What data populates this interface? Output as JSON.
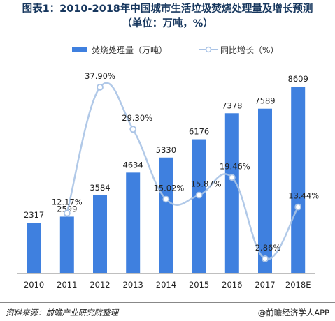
{
  "chart_data": {
    "type": "bar+line",
    "title": "图表1：2010-2018年中国城市生活垃圾焚烧处理量及增长预测",
    "subtitle": "（单位：万吨，%）",
    "categories": [
      "2010",
      "2011",
      "2012",
      "2013",
      "2014",
      "2015",
      "2016",
      "2017",
      "2018E"
    ],
    "series": [
      {
        "name": "焚烧处理量（万吨）",
        "type": "bar",
        "values": [
          2317,
          2599,
          3584,
          4634,
          5330,
          6176,
          7378,
          7589,
          8609
        ],
        "labels": [
          "2317",
          "2599",
          "3584",
          "4634",
          "5330",
          "6176",
          "7378",
          "7589",
          "8609"
        ]
      },
      {
        "name": "同比增长（%）",
        "type": "line",
        "smooth": true,
        "values": [
          null,
          12.17,
          37.9,
          29.3,
          15.02,
          15.87,
          19.46,
          2.86,
          13.44
        ],
        "labels": [
          "",
          "12.17%",
          "37.90%",
          "29.30%",
          "15.02%",
          "15.87%",
          "19.46%",
          "2.86%",
          "13.44%"
        ]
      }
    ],
    "y_bar_range": [
      0,
      10000
    ],
    "y_line_range": [
      0,
      45
    ],
    "legend_position": "top",
    "grid": false,
    "colors": {
      "bar": "#3f80df",
      "line": "#a9c3e6",
      "title": "#17375e"
    }
  },
  "footer": {
    "source": "资料来源：前瞻产业研究院整理",
    "brand": "@前瞻经济学人APP"
  }
}
